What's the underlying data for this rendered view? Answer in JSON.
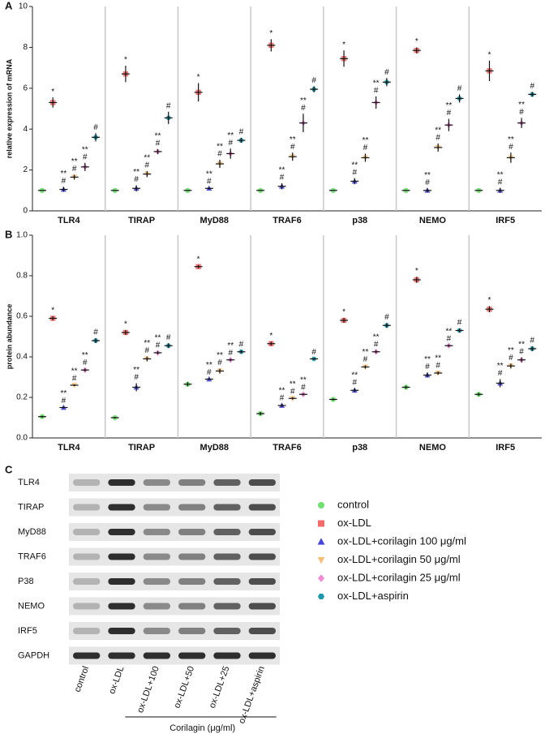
{
  "chart_data": [
    {
      "type": "dot",
      "panel": "A",
      "ylabel": "relative expression of mRNA",
      "categories": [
        "TLR4",
        "TIRAP",
        "MyD88",
        "TRAF6",
        "p38",
        "NEMO",
        "IRF5"
      ],
      "ylim": [
        0,
        10
      ],
      "yticks": [
        0,
        2,
        4,
        6,
        8,
        10
      ],
      "series": [
        {
          "name": "control",
          "color": "#6fe06f",
          "marker": "circle",
          "values": [
            1,
            1,
            1,
            1,
            1,
            1,
            1
          ],
          "errors": [
            0.02,
            0.02,
            0.02,
            0.02,
            0.02,
            0.02,
            0.02
          ],
          "annotation": []
        },
        {
          "name": "ox-LDL",
          "color": "#f26a6a",
          "marker": "square",
          "values": [
            5.3,
            6.7,
            5.8,
            8.1,
            7.45,
            7.85,
            6.85
          ],
          "errors": [
            0.25,
            0.4,
            0.45,
            0.3,
            0.4,
            0.15,
            0.5
          ],
          "annotation": [
            "*"
          ]
        },
        {
          "name": "ox-LDL+corilagin 100 μg/ml",
          "color": "#4646dc",
          "marker": "triangle",
          "values": [
            1.05,
            1.1,
            1.1,
            1.2,
            1.45,
            1.0,
            1.0
          ],
          "errors": [
            0.12,
            0.15,
            0.06,
            0.15,
            0.15,
            0.1,
            0.12
          ],
          "annotation": [
            "**",
            "#"
          ]
        },
        {
          "name": "ox-LDL+corilagin 50 μg/ml",
          "color": "#f5be78",
          "marker": "invtriangle",
          "values": [
            1.65,
            1.8,
            2.3,
            2.65,
            2.6,
            3.1,
            2.6
          ],
          "errors": [
            0.12,
            0.15,
            0.2,
            0.2,
            0.2,
            0.2,
            0.25
          ],
          "annotation": [
            "**",
            "#"
          ]
        },
        {
          "name": "ox-LDL+corilagin 25 μg/ml",
          "color": "#f08ad2",
          "marker": "diamond",
          "values": [
            2.15,
            2.9,
            2.8,
            4.3,
            5.3,
            4.2,
            4.3
          ],
          "errors": [
            0.2,
            0.12,
            0.25,
            0.45,
            0.3,
            0.3,
            0.25
          ],
          "annotation": [
            "**",
            "#"
          ]
        },
        {
          "name": "ox-LDL+aspirin",
          "color": "#1a98ae",
          "marker": "hexagon",
          "values": [
            3.6,
            4.55,
            3.45,
            5.95,
            6.3,
            5.5,
            5.7
          ],
          "errors": [
            0.2,
            0.3,
            0.12,
            0.15,
            0.2,
            0.2,
            0.12
          ],
          "annotation": [
            "#"
          ]
        }
      ]
    },
    {
      "type": "dot",
      "panel": "B",
      "ylabel": "protein abundance",
      "categories": [
        "TLR4",
        "TIRAP",
        "MyD88",
        "TRAF6",
        "p38",
        "NEMO",
        "IRF5"
      ],
      "ylim": [
        0,
        1
      ],
      "yticks": [
        {
          "value": 0,
          "label": "0.0"
        },
        0.2,
        0.4,
        0.6,
        0.8,
        {
          "value": 1,
          "label": "1.0"
        }
      ],
      "series": [
        {
          "name": "control",
          "color": "#6fe06f",
          "marker": "circle",
          "values": [
            0.105,
            0.1,
            0.265,
            0.12,
            0.19,
            0.25,
            0.215
          ],
          "errors": [
            0.005,
            0.004,
            0.01,
            0.008,
            0.005,
            0.008,
            0.008
          ],
          "annotation": []
        },
        {
          "name": "ox-LDL",
          "color": "#f26a6a",
          "marker": "square",
          "values": [
            0.59,
            0.52,
            0.845,
            0.465,
            0.58,
            0.78,
            0.635
          ],
          "errors": [
            0.01,
            0.012,
            0.008,
            0.01,
            0.012,
            0.015,
            0.015
          ],
          "annotation": [
            "*"
          ]
        },
        {
          "name": "ox-LDL+corilagin 100 μg/ml",
          "color": "#4646dc",
          "marker": "triangle",
          "values": [
            0.15,
            0.25,
            0.29,
            0.16,
            0.235,
            0.31,
            0.27
          ],
          "errors": [
            0.005,
            0.02,
            0.005,
            0.008,
            0.01,
            0.012,
            0.02
          ],
          "annotation": [
            "**",
            "#"
          ]
        },
        {
          "name": "ox-LDL+corilagin 50 μg/ml",
          "color": "#f5be78",
          "marker": "invtriangle",
          "values": [
            0.26,
            0.39,
            0.33,
            0.195,
            0.35,
            0.32,
            0.355
          ],
          "errors": [
            0.004,
            0.012,
            0.012,
            0.006,
            0.008,
            0.008,
            0.012
          ],
          "annotation": [
            "**",
            "#"
          ]
        },
        {
          "name": "ox-LDL+corilagin 25 μg/ml",
          "color": "#f08ad2",
          "marker": "diamond",
          "values": [
            0.335,
            0.42,
            0.385,
            0.215,
            0.425,
            0.455,
            0.385
          ],
          "errors": [
            0.008,
            0.008,
            0.006,
            0.005,
            0.008,
            0.006,
            0.012
          ],
          "annotation": [
            "**",
            "#"
          ]
        },
        {
          "name": "ox-LDL+aspirin",
          "color": "#1a98ae",
          "marker": "hexagon",
          "values": [
            0.48,
            0.455,
            0.425,
            0.39,
            0.555,
            0.53,
            0.44
          ],
          "errors": [
            0.012,
            0.012,
            0.008,
            0.005,
            0.012,
            0.01,
            0.012
          ],
          "annotation": [
            "#"
          ]
        }
      ]
    }
  ],
  "blot": {
    "panel": "C",
    "proteins": [
      "TLR4",
      "TIRAP",
      "MyD88",
      "TRAF6",
      "P38",
      "NEMO",
      "IRF5",
      "GAPDH"
    ],
    "lanes": [
      "control",
      "ox-LDL",
      "ox-LDL+100",
      "ox-LDL+50",
      "ox-LDL+25",
      "ox-LDL+aspirin"
    ],
    "group_label": "Corilagin (μg/ml)"
  }
}
